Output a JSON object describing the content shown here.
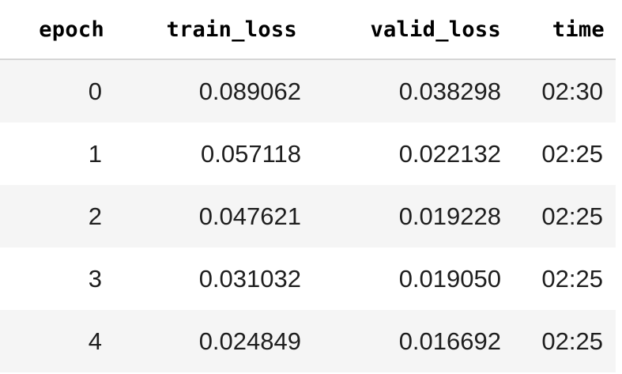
{
  "table": {
    "columns": [
      "epoch",
      "train_loss",
      "valid_loss",
      "time"
    ],
    "rows": [
      {
        "epoch": "0",
        "train_loss": "0.089062",
        "valid_loss": "0.038298",
        "time": "02:30"
      },
      {
        "epoch": "1",
        "train_loss": "0.057118",
        "valid_loss": "0.022132",
        "time": "02:25"
      },
      {
        "epoch": "2",
        "train_loss": "0.047621",
        "valid_loss": "0.019228",
        "time": "02:25"
      },
      {
        "epoch": "3",
        "train_loss": "0.031032",
        "valid_loss": "0.019050",
        "time": "02:25"
      },
      {
        "epoch": "4",
        "train_loss": "0.024849",
        "valid_loss": "0.016692",
        "time": "02:25"
      }
    ]
  },
  "colors": {
    "header_text": "#000000",
    "cell_text": "#1e1e1e",
    "stripe": "#f5f5f5",
    "background": "#ffffff",
    "header_rule": "#d6d6d6"
  }
}
